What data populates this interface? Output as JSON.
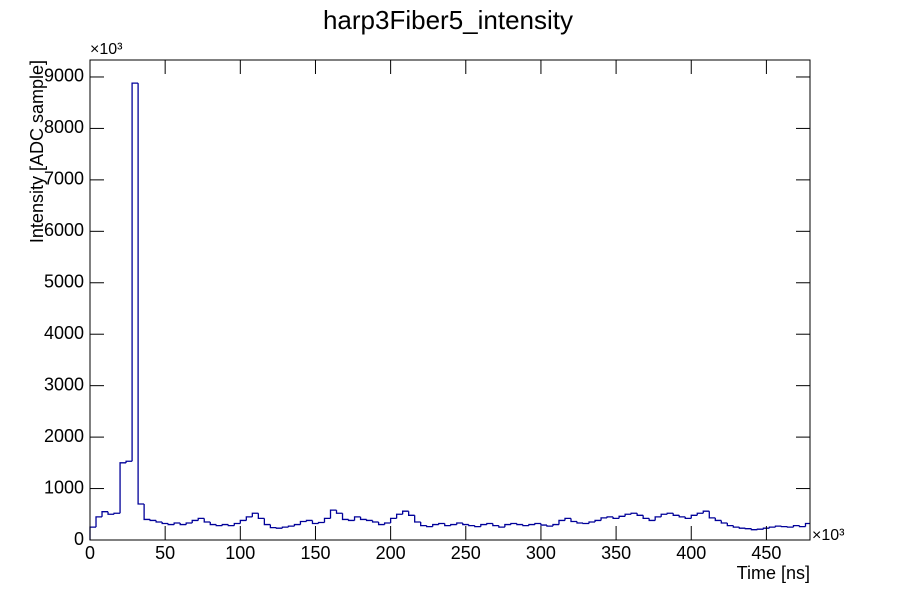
{
  "chart_data": {
    "type": "histogram",
    "title": "harp3Fiber5_intensity",
    "x_label": "Time [ns]",
    "y_label": "Intensity [ADC sample]",
    "x_multiplier": "×10³",
    "y_multiplier": "×10³",
    "color": "#000099",
    "bins": [
      0,
      4,
      8,
      12,
      16,
      20,
      24,
      28,
      32,
      36,
      40,
      44,
      48,
      52,
      56,
      60,
      64,
      68,
      72,
      76,
      80,
      84,
      88,
      92,
      96,
      100,
      104,
      108,
      112,
      116,
      120,
      124,
      128,
      132,
      136,
      140,
      144,
      148,
      152,
      156,
      160,
      164,
      168,
      172,
      176,
      180,
      184,
      188,
      192,
      196,
      200,
      204,
      208,
      212,
      216,
      220,
      224,
      228,
      232,
      236,
      240,
      244,
      248,
      252,
      256,
      260,
      264,
      268,
      272,
      276,
      280,
      284,
      288,
      292,
      296,
      300,
      304,
      308,
      312,
      316,
      320,
      324,
      328,
      332,
      336,
      340,
      344,
      348,
      352,
      356,
      360,
      364,
      368,
      372,
      376,
      380,
      384,
      388,
      392,
      396,
      400,
      404,
      408,
      412,
      416,
      420,
      424,
      428,
      432,
      436,
      440,
      444,
      448,
      452,
      456,
      460,
      464,
      468,
      472,
      476,
      479
    ],
    "values": [
      250,
      450,
      550,
      500,
      520,
      1500,
      1530,
      8880,
      700,
      400,
      380,
      350,
      320,
      300,
      330,
      300,
      330,
      380,
      420,
      350,
      300,
      280,
      300,
      280,
      320,
      380,
      450,
      520,
      420,
      300,
      240,
      230,
      250,
      270,
      300,
      360,
      380,
      320,
      340,
      420,
      580,
      520,
      400,
      380,
      450,
      400,
      380,
      350,
      300,
      330,
      420,
      500,
      560,
      480,
      350,
      280,
      260,
      300,
      320,
      280,
      300,
      330,
      300,
      280,
      260,
      300,
      320,
      280,
      250,
      300,
      320,
      300,
      280,
      300,
      320,
      290,
      270,
      300,
      380,
      420,
      360,
      330,
      320,
      350,
      380,
      430,
      450,
      420,
      460,
      500,
      520,
      480,
      420,
      380,
      450,
      500,
      520,
      480,
      450,
      420,
      480,
      520,
      560,
      430,
      380,
      330,
      280,
      250,
      230,
      220,
      200,
      210,
      230,
      250,
      270,
      260,
      250,
      280,
      260,
      320
    ],
    "xlim": [
      0,
      479
    ],
    "xticks": [
      0,
      50,
      100,
      150,
      200,
      250,
      300,
      350,
      400,
      450
    ],
    "ylim": [
      0,
      9330
    ],
    "yticks": [
      0,
      1000,
      2000,
      3000,
      4000,
      5000,
      6000,
      7000,
      8000,
      9000
    ]
  }
}
